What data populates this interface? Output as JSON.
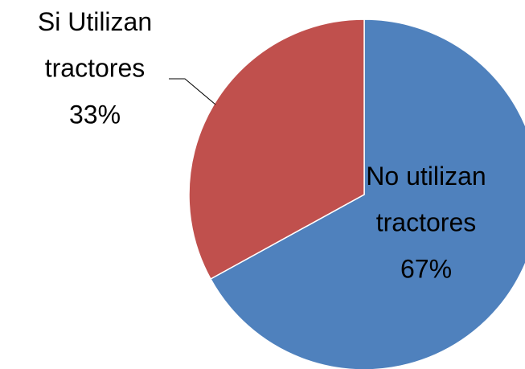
{
  "chart_data": {
    "type": "pie",
    "categories": [
      "No utilizan tractores",
      "Si Utilizan tractores"
    ],
    "values": [
      67,
      33
    ],
    "value_labels": [
      "67%",
      "33%"
    ],
    "colors": [
      "#4f81bd",
      "#c0504d"
    ]
  }
}
